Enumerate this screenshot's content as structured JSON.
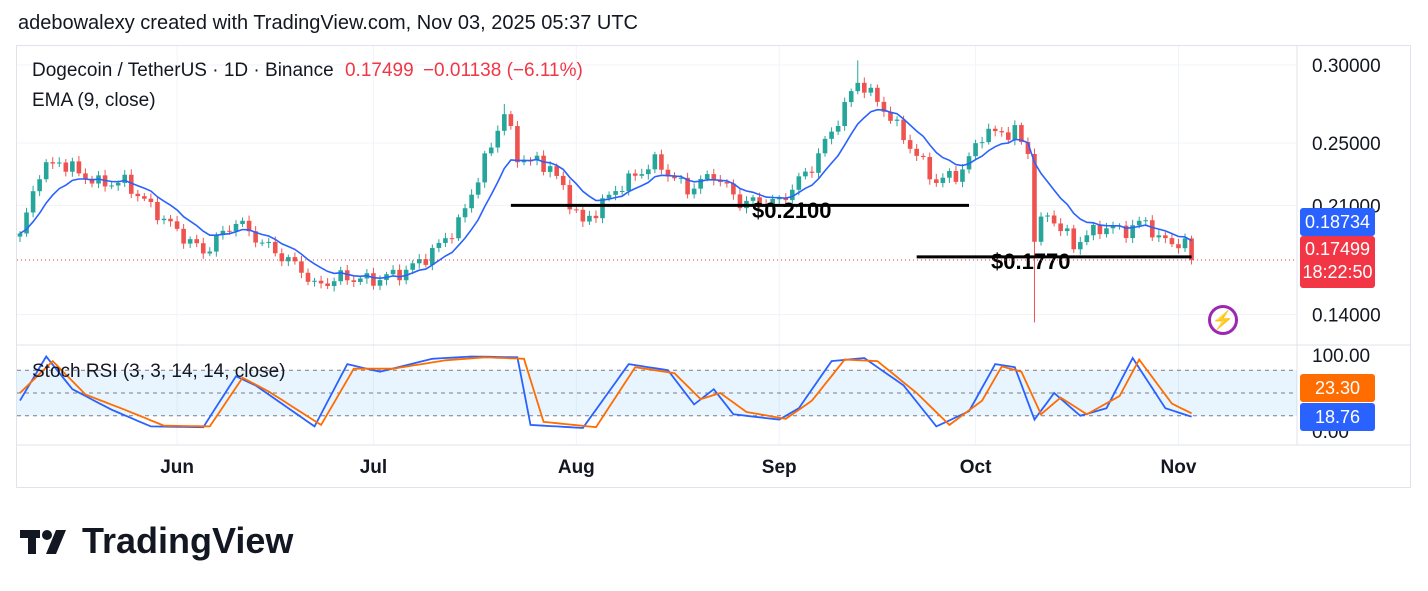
{
  "header": {
    "credit": "adebowalexy created with TradingView.com, Nov 03, 2025 05:37 UTC"
  },
  "legend": {
    "symbol": "Dogecoin / TetherUS · 1D · Binance",
    "price": "0.17499",
    "change": "−0.01138 (−6.11%)",
    "ema": "EMA (9, close)",
    "stoch": "Stoch RSI (3, 3, 14, 14, close)"
  },
  "annotations": {
    "level1": "$0.2100",
    "level2": "$0.1770"
  },
  "price_tags": {
    "ema": "0.18734",
    "close": "0.17499",
    "countdown": "18:22:50",
    "stoch_d": "23.30",
    "stoch_k": "18.76"
  },
  "price_axis": [
    "0.30000",
    "0.25000",
    "0.21000",
    "0.14000"
  ],
  "rsi_axis": [
    "100.00",
    "0.00"
  ],
  "time_axis": [
    "Jun",
    "Jul",
    "Aug",
    "Sep",
    "Oct",
    "Nov"
  ],
  "logo": {
    "text": "TradingView"
  },
  "colors": {
    "up": "#26a69a",
    "down": "#ef5350",
    "ema": "#2962ff",
    "k": "#2962ff",
    "d": "#ff6d00",
    "tag_blue": "#2962ff",
    "tag_red": "#f23645",
    "tag_orange": "#ff6d00"
  },
  "chart_data": [
    {
      "type": "candlestick",
      "symbol": "DOGE/USDT",
      "timeframe": "1D",
      "ylim": [
        0.135,
        0.31
      ],
      "anchors": [
        {
          "date": "2025-05-08",
          "price": 0.19
        },
        {
          "date": "2025-05-11",
          "price": 0.232
        },
        {
          "date": "2025-05-14",
          "price": 0.238
        },
        {
          "date": "2025-05-20",
          "price": 0.224
        },
        {
          "date": "2025-05-24",
          "price": 0.225
        },
        {
          "date": "2025-05-29",
          "price": 0.205
        },
        {
          "date": "2025-06-02",
          "price": 0.19
        },
        {
          "date": "2025-06-05",
          "price": 0.18
        },
        {
          "date": "2025-06-10",
          "price": 0.2
        },
        {
          "date": "2025-06-14",
          "price": 0.186
        },
        {
          "date": "2025-06-20",
          "price": 0.169
        },
        {
          "date": "2025-06-22",
          "price": 0.158
        },
        {
          "date": "2025-06-26",
          "price": 0.164
        },
        {
          "date": "2025-07-01",
          "price": 0.162
        },
        {
          "date": "2025-07-06",
          "price": 0.168
        },
        {
          "date": "2025-07-10",
          "price": 0.18
        },
        {
          "date": "2025-07-14",
          "price": 0.198
        },
        {
          "date": "2025-07-18",
          "price": 0.238
        },
        {
          "date": "2025-07-21",
          "price": 0.27
        },
        {
          "date": "2025-07-23",
          "price": 0.241
        },
        {
          "date": "2025-07-28",
          "price": 0.235
        },
        {
          "date": "2025-08-02",
          "price": 0.198
        },
        {
          "date": "2025-08-07",
          "price": 0.22
        },
        {
          "date": "2025-08-13",
          "price": 0.238
        },
        {
          "date": "2025-08-18",
          "price": 0.22
        },
        {
          "date": "2025-08-22",
          "price": 0.23
        },
        {
          "date": "2025-08-26",
          "price": 0.212
        },
        {
          "date": "2025-09-01",
          "price": 0.212
        },
        {
          "date": "2025-09-06",
          "price": 0.235
        },
        {
          "date": "2025-09-10",
          "price": 0.265
        },
        {
          "date": "2025-09-13",
          "price": 0.29
        },
        {
          "date": "2025-09-17",
          "price": 0.272
        },
        {
          "date": "2025-09-22",
          "price": 0.242
        },
        {
          "date": "2025-09-25",
          "price": 0.225
        },
        {
          "date": "2025-09-29",
          "price": 0.232
        },
        {
          "date": "2025-10-02",
          "price": 0.256
        },
        {
          "date": "2025-10-07",
          "price": 0.257
        },
        {
          "date": "2025-10-09",
          "price": 0.244
        },
        {
          "date": "2025-10-10",
          "price": 0.19
        },
        {
          "date": "2025-10-12",
          "price": 0.205
        },
        {
          "date": "2025-10-16",
          "price": 0.185
        },
        {
          "date": "2025-10-20",
          "price": 0.196
        },
        {
          "date": "2025-10-24",
          "price": 0.194
        },
        {
          "date": "2025-10-27",
          "price": 0.2
        },
        {
          "date": "2025-10-29",
          "price": 0.188
        },
        {
          "date": "2025-11-02",
          "price": 0.185
        },
        {
          "date": "2025-11-03",
          "price": 0.175
        }
      ],
      "close": 0.17499,
      "ema9_last": 0.18734,
      "support_levels": [
        0.21,
        0.177
      ],
      "flash_crash_low": 0.135
    },
    {
      "type": "line",
      "title": "Stoch RSI (3, 3, 14, 14, close)",
      "ylim": [
        0,
        100
      ],
      "bands": [
        20,
        80
      ],
      "series": [
        {
          "name": "K",
          "points": [
            {
              "date": "2025-05-08",
              "value": 40
            },
            {
              "date": "2025-05-12",
              "value": 98
            },
            {
              "date": "2025-05-16",
              "value": 55
            },
            {
              "date": "2025-05-22",
              "value": 28
            },
            {
              "date": "2025-05-28",
              "value": 6
            },
            {
              "date": "2025-06-05",
              "value": 5
            },
            {
              "date": "2025-06-10",
              "value": 72
            },
            {
              "date": "2025-06-13",
              "value": 60
            },
            {
              "date": "2025-06-22",
              "value": 6
            },
            {
              "date": "2025-06-27",
              "value": 88
            },
            {
              "date": "2025-07-02",
              "value": 78
            },
            {
              "date": "2025-07-10",
              "value": 95
            },
            {
              "date": "2025-07-16",
              "value": 98
            },
            {
              "date": "2025-07-23",
              "value": 97
            },
            {
              "date": "2025-07-25",
              "value": 8
            },
            {
              "date": "2025-08-02",
              "value": 4
            },
            {
              "date": "2025-08-09",
              "value": 88
            },
            {
              "date": "2025-08-15",
              "value": 80
            },
            {
              "date": "2025-08-19",
              "value": 35
            },
            {
              "date": "2025-08-22",
              "value": 55
            },
            {
              "date": "2025-08-25",
              "value": 22
            },
            {
              "date": "2025-09-01",
              "value": 15
            },
            {
              "date": "2025-09-04",
              "value": 30
            },
            {
              "date": "2025-09-09",
              "value": 92
            },
            {
              "date": "2025-09-14",
              "value": 96
            },
            {
              "date": "2025-09-20",
              "value": 60
            },
            {
              "date": "2025-09-25",
              "value": 6
            },
            {
              "date": "2025-09-30",
              "value": 26
            },
            {
              "date": "2025-10-04",
              "value": 88
            },
            {
              "date": "2025-10-07",
              "value": 84
            },
            {
              "date": "2025-10-10",
              "value": 15
            },
            {
              "date": "2025-10-13",
              "value": 50
            },
            {
              "date": "2025-10-17",
              "value": 20
            },
            {
              "date": "2025-10-21",
              "value": 30
            },
            {
              "date": "2025-10-25",
              "value": 96
            },
            {
              "date": "2025-10-30",
              "value": 30
            },
            {
              "date": "2025-11-03",
              "value": 18.76
            }
          ]
        },
        {
          "name": "D",
          "points": [
            {
              "date": "2025-05-08",
              "value": 50
            },
            {
              "date": "2025-05-13",
              "value": 92
            },
            {
              "date": "2025-05-18",
              "value": 48
            },
            {
              "date": "2025-05-24",
              "value": 28
            },
            {
              "date": "2025-05-30",
              "value": 7
            },
            {
              "date": "2025-06-06",
              "value": 6
            },
            {
              "date": "2025-06-11",
              "value": 70
            },
            {
              "date": "2025-06-15",
              "value": 52
            },
            {
              "date": "2025-06-23",
              "value": 8
            },
            {
              "date": "2025-06-28",
              "value": 82
            },
            {
              "date": "2025-07-04",
              "value": 82
            },
            {
              "date": "2025-07-12",
              "value": 93
            },
            {
              "date": "2025-07-18",
              "value": 97
            },
            {
              "date": "2025-07-24",
              "value": 95
            },
            {
              "date": "2025-07-27",
              "value": 12
            },
            {
              "date": "2025-08-04",
              "value": 5
            },
            {
              "date": "2025-08-10",
              "value": 84
            },
            {
              "date": "2025-08-16",
              "value": 76
            },
            {
              "date": "2025-08-20",
              "value": 42
            },
            {
              "date": "2025-08-23",
              "value": 50
            },
            {
              "date": "2025-08-27",
              "value": 25
            },
            {
              "date": "2025-09-02",
              "value": 16
            },
            {
              "date": "2025-09-06",
              "value": 40
            },
            {
              "date": "2025-09-11",
              "value": 94
            },
            {
              "date": "2025-09-16",
              "value": 92
            },
            {
              "date": "2025-09-22",
              "value": 50
            },
            {
              "date": "2025-09-27",
              "value": 8
            },
            {
              "date": "2025-10-02",
              "value": 40
            },
            {
              "date": "2025-10-05",
              "value": 85
            },
            {
              "date": "2025-10-08",
              "value": 78
            },
            {
              "date": "2025-10-11",
              "value": 22
            },
            {
              "date": "2025-10-14",
              "value": 44
            },
            {
              "date": "2025-10-18",
              "value": 22
            },
            {
              "date": "2025-10-23",
              "value": 46
            },
            {
              "date": "2025-10-26",
              "value": 94
            },
            {
              "date": "2025-10-31",
              "value": 36
            },
            {
              "date": "2025-11-03",
              "value": 23.3
            }
          ]
        }
      ]
    }
  ]
}
